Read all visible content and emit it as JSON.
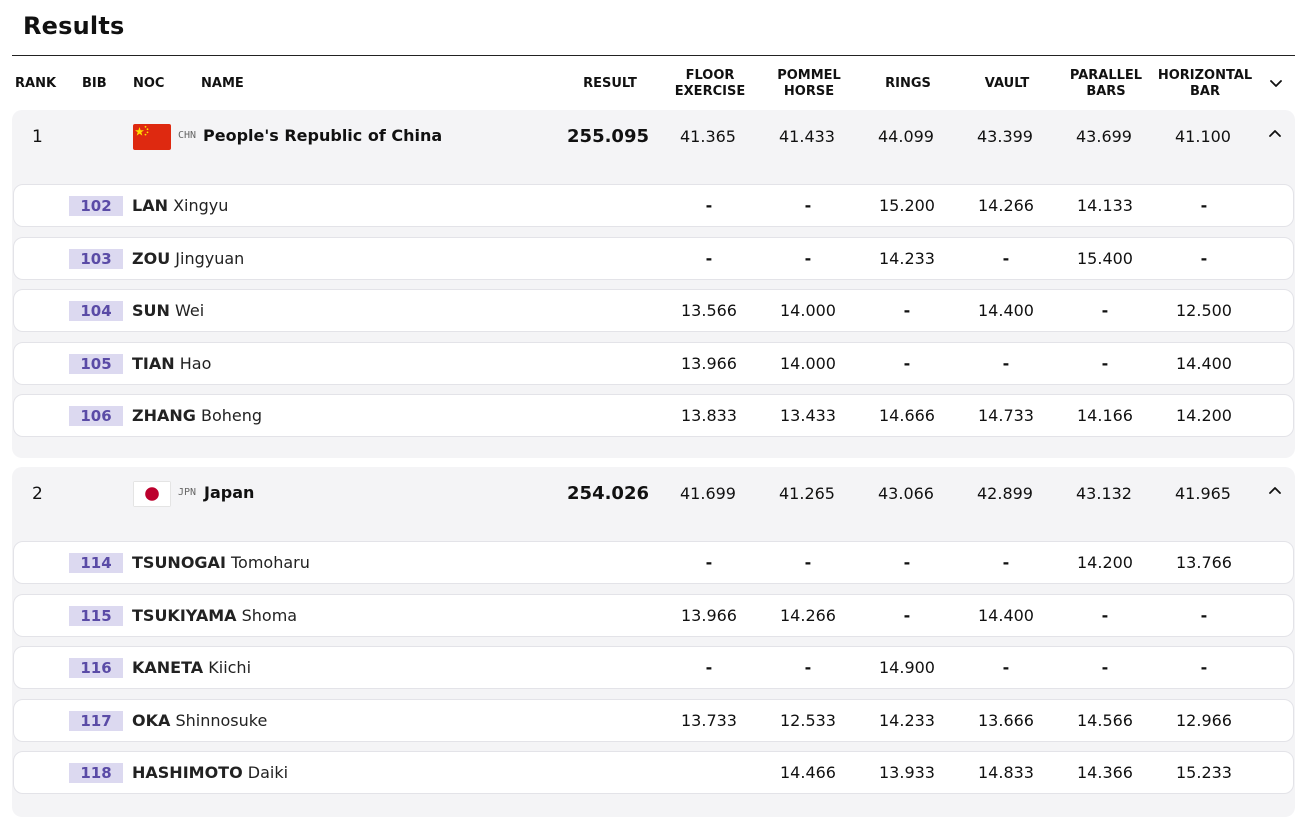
{
  "title": "Results",
  "columns": {
    "rank": "RANK",
    "bib": "BIB",
    "noc": "NOC",
    "name": "NAME",
    "result": "RESULT",
    "floor": [
      "FLOOR",
      "EXERCISE"
    ],
    "pommel": [
      "POMMEL",
      "HORSE"
    ],
    "rings": "RINGS",
    "vault": "VAULT",
    "parallel": [
      "PARALLEL",
      "BARS"
    ],
    "horizontal": [
      "HORIZONTAL",
      "BAR"
    ]
  },
  "icons": {
    "header": "chevron-down-icon",
    "team": "chevron-up-icon"
  },
  "colors": {
    "bib_bg": "#dcd9f0",
    "bib_text": "#5a4ba6",
    "chn_red": "#de2910",
    "chn_star": "#ffde00",
    "jpn_red": "#bc002d"
  },
  "teams": [
    {
      "rank": "1",
      "noc": "CHN",
      "name": "People's Republic of China",
      "result": "255.095",
      "scores": [
        "41.365",
        "41.433",
        "44.099",
        "43.399",
        "43.699",
        "41.100"
      ],
      "athletes": [
        {
          "bib": "102",
          "last": "LAN",
          "first": "Xingyu",
          "scores": [
            "-",
            "-",
            "15.200",
            "14.266",
            "14.133",
            "-"
          ]
        },
        {
          "bib": "103",
          "last": "ZOU",
          "first": "Jingyuan",
          "scores": [
            "-",
            "-",
            "14.233",
            "-",
            "15.400",
            "-"
          ]
        },
        {
          "bib": "104",
          "last": "SUN",
          "first": "Wei",
          "scores": [
            "13.566",
            "14.000",
            "-",
            "14.400",
            "-",
            "12.500"
          ]
        },
        {
          "bib": "105",
          "last": "TIAN",
          "first": "Hao",
          "scores": [
            "13.966",
            "14.000",
            "-",
            "-",
            "-",
            "14.400"
          ]
        },
        {
          "bib": "106",
          "last": "ZHANG",
          "first": "Boheng",
          "scores": [
            "13.833",
            "13.433",
            "14.666",
            "14.733",
            "14.166",
            "14.200"
          ]
        }
      ]
    },
    {
      "rank": "2",
      "noc": "JPN",
      "name": "Japan",
      "result": "254.026",
      "scores": [
        "41.699",
        "41.265",
        "43.066",
        "42.899",
        "43.132",
        "41.965"
      ],
      "athletes": [
        {
          "bib": "114",
          "last": "TSUNOGAI",
          "first": "Tomoharu",
          "scores": [
            "-",
            "-",
            "-",
            "-",
            "14.200",
            "13.766"
          ]
        },
        {
          "bib": "115",
          "last": "TSUKIYAMA",
          "first": "Shoma",
          "scores": [
            "13.966",
            "14.266",
            "-",
            "14.400",
            "-",
            "-"
          ]
        },
        {
          "bib": "116",
          "last": "KANETA",
          "first": "Kiichi",
          "scores": [
            "-",
            "-",
            "14.900",
            "-",
            "-",
            "-"
          ]
        },
        {
          "bib": "117",
          "last": "OKA",
          "first": "Shinnosuke",
          "scores": [
            "13.733",
            "12.533",
            "14.233",
            "13.666",
            "14.566",
            "12.966"
          ]
        },
        {
          "bib": "118",
          "last": "HASHIMOTO",
          "first": "Daiki",
          "scores": [
            "",
            "14.466",
            "13.933",
            "14.833",
            "14.366",
            "15.233"
          ]
        }
      ]
    }
  ]
}
